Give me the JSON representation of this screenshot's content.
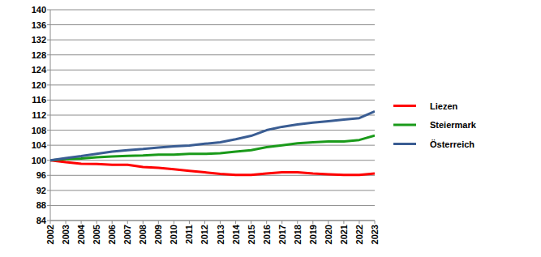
{
  "chart_data": {
    "type": "line",
    "categories": [
      "2002",
      "2003",
      "2004",
      "2005",
      "2006",
      "2007",
      "2008",
      "2009",
      "2010",
      "2011",
      "2012",
      "2013",
      "2014",
      "2015",
      "2016",
      "2017",
      "2018",
      "2019",
      "2020",
      "2021",
      "2022",
      "2023"
    ],
    "series": [
      {
        "name": "Liezen",
        "color": "#ff0000",
        "values": [
          100,
          99.5,
          99.1,
          99.0,
          98.8,
          98.8,
          98.2,
          98.0,
          97.6,
          97.2,
          96.8,
          96.4,
          96.1,
          96.1,
          96.5,
          96.8,
          96.8,
          96.5,
          96.3,
          96.1,
          96.1,
          96.5
        ]
      },
      {
        "name": "Steiermark",
        "color": "#1a9a1a",
        "values": [
          100,
          100.3,
          100.5,
          100.8,
          101.0,
          101.2,
          101.3,
          101.5,
          101.5,
          101.7,
          101.7,
          101.9,
          102.3,
          102.7,
          103.5,
          104.0,
          104.5,
          104.8,
          105.0,
          105.0,
          105.4,
          106.6
        ]
      },
      {
        "name": "Österreich",
        "color": "#3a5d93",
        "values": [
          100,
          100.6,
          101.1,
          101.7,
          102.3,
          102.7,
          103.0,
          103.4,
          103.7,
          103.9,
          104.4,
          104.8,
          105.6,
          106.5,
          108.0,
          108.9,
          109.5,
          110.0,
          110.4,
          110.8,
          111.2,
          113.0
        ]
      }
    ],
    "ylim": [
      84,
      140
    ],
    "yticks": [
      84,
      88,
      92,
      96,
      100,
      104,
      108,
      112,
      116,
      120,
      124,
      128,
      132,
      136,
      140
    ],
    "grid": true,
    "legend": "right"
  }
}
